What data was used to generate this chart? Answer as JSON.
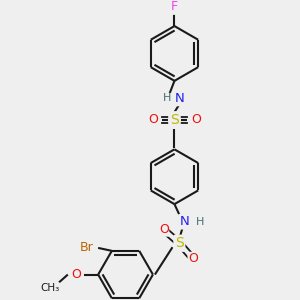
{
  "bg_color": "#efefef",
  "bond_color": "#1a1a1a",
  "atom_colors": {
    "F": "#ee44ee",
    "N": "#2020ee",
    "H": "#407070",
    "S": "#bbbb00",
    "O": "#ee1111",
    "Br": "#bb6600",
    "C": "#1a1a1a",
    "methoxy": "#ee1111"
  },
  "font_size": 8.5,
  "figsize": [
    3.0,
    3.0
  ],
  "dpi": 100
}
